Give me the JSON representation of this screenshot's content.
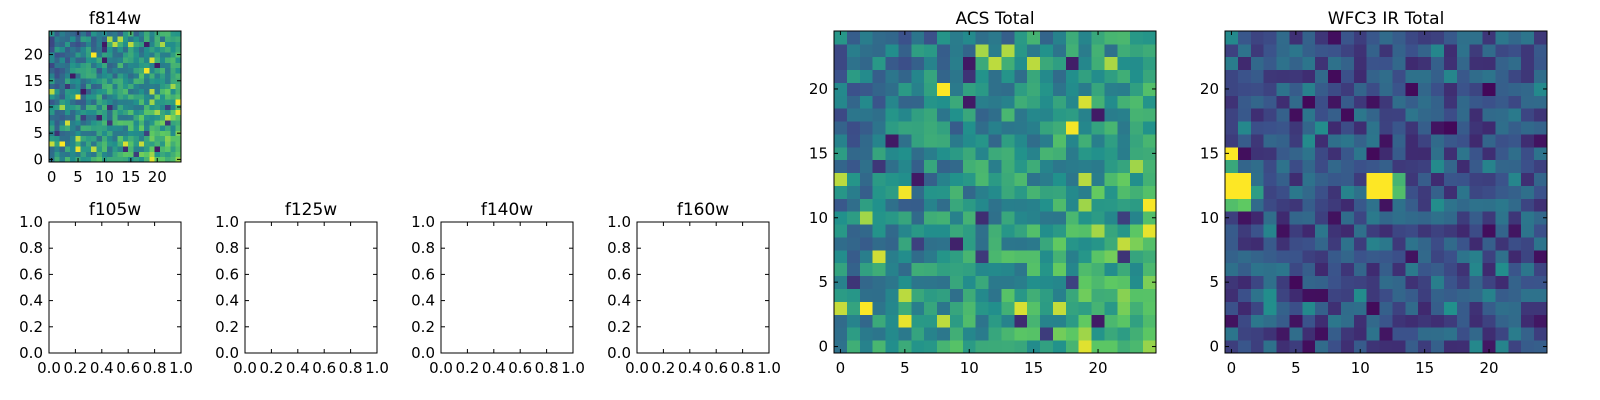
{
  "colormap": {
    "name": "viridis",
    "stops": [
      "#440154",
      "#3b528b",
      "#21918c",
      "#5ec962",
      "#fde725"
    ]
  },
  "chart_data": [
    {
      "type": "heatmap",
      "title": "f814w",
      "grid_size": [
        25,
        25
      ],
      "xlim": [
        -0.5,
        24.5
      ],
      "ylim": [
        -0.5,
        24.5
      ],
      "xticks": [
        0,
        5,
        10,
        15,
        20
      ],
      "yticks": [
        0,
        5,
        10,
        15,
        20
      ],
      "pattern": "noise_high_at_lower_right",
      "seed": 7
    },
    {
      "type": "heatmap",
      "title": "f105w",
      "empty": true,
      "xlim": [
        0.0,
        1.0
      ],
      "ylim": [
        0.0,
        1.0
      ],
      "xticks": [
        "0.0",
        "0.2",
        "0.4",
        "0.6",
        "0.8",
        "1.0"
      ],
      "yticks": [
        "0.0",
        "0.2",
        "0.4",
        "0.6",
        "0.8",
        "1.0"
      ]
    },
    {
      "type": "heatmap",
      "title": "f125w",
      "empty": true,
      "xlim": [
        0.0,
        1.0
      ],
      "ylim": [
        0.0,
        1.0
      ],
      "xticks": [
        "0.0",
        "0.2",
        "0.4",
        "0.6",
        "0.8",
        "1.0"
      ],
      "yticks": [
        "0.0",
        "0.2",
        "0.4",
        "0.6",
        "0.8",
        "1.0"
      ]
    },
    {
      "type": "heatmap",
      "title": "f140w",
      "empty": true,
      "xlim": [
        0.0,
        1.0
      ],
      "ylim": [
        0.0,
        1.0
      ],
      "xticks": [
        "0.0",
        "0.2",
        "0.4",
        "0.6",
        "0.8",
        "1.0"
      ],
      "yticks": [
        "0.0",
        "0.2",
        "0.4",
        "0.6",
        "0.8",
        "1.0"
      ]
    },
    {
      "type": "heatmap",
      "title": "f160w",
      "empty": true,
      "xlim": [
        0.0,
        1.0
      ],
      "ylim": [
        0.0,
        1.0
      ],
      "xticks": [
        "0.0",
        "0.2",
        "0.4",
        "0.6",
        "0.8",
        "1.0"
      ],
      "yticks": [
        "0.0",
        "0.2",
        "0.4",
        "0.6",
        "0.8",
        "1.0"
      ]
    },
    {
      "type": "heatmap",
      "title": "ACS Total",
      "grid_size": [
        25,
        25
      ],
      "xlim": [
        -0.5,
        24.5
      ],
      "ylim": [
        -0.5,
        24.5
      ],
      "xticks": [
        0,
        5,
        10,
        15,
        20
      ],
      "yticks": [
        0,
        5,
        10,
        15,
        20
      ],
      "pattern": "noise_high_at_lower_right",
      "seed": 7
    },
    {
      "type": "heatmap",
      "title": "WFC3 IR Total",
      "grid_size": [
        25,
        25
      ],
      "xlim": [
        -0.5,
        24.5
      ],
      "ylim": [
        -0.5,
        24.5
      ],
      "xticks": [
        0,
        5,
        10,
        15,
        20
      ],
      "yticks": [
        0,
        5,
        10,
        15,
        20
      ],
      "pattern": "dark_noise_with_bright_sources",
      "bright_sources": [
        {
          "x": 0,
          "y": 12,
          "value": 1.0
        },
        {
          "x": 0,
          "y": 13,
          "value": 1.0
        },
        {
          "x": 1,
          "y": 12,
          "value": 1.0
        },
        {
          "x": 1,
          "y": 13,
          "value": 1.0
        },
        {
          "x": 0,
          "y": 15,
          "value": 1.0
        },
        {
          "x": 11,
          "y": 12,
          "value": 1.0
        },
        {
          "x": 12,
          "y": 12,
          "value": 1.0
        },
        {
          "x": 11,
          "y": 13,
          "value": 1.0
        },
        {
          "x": 12,
          "y": 13,
          "value": 1.0
        },
        {
          "x": 0,
          "y": 11,
          "value": 0.7
        },
        {
          "x": 1,
          "y": 11,
          "value": 0.75
        },
        {
          "x": 2,
          "y": 12,
          "value": 0.55
        },
        {
          "x": 13,
          "y": 12,
          "value": 0.7
        },
        {
          "x": 13,
          "y": 13,
          "value": 0.65
        },
        {
          "x": 0,
          "y": 14,
          "value": 0.6
        }
      ],
      "seed": 23
    }
  ]
}
